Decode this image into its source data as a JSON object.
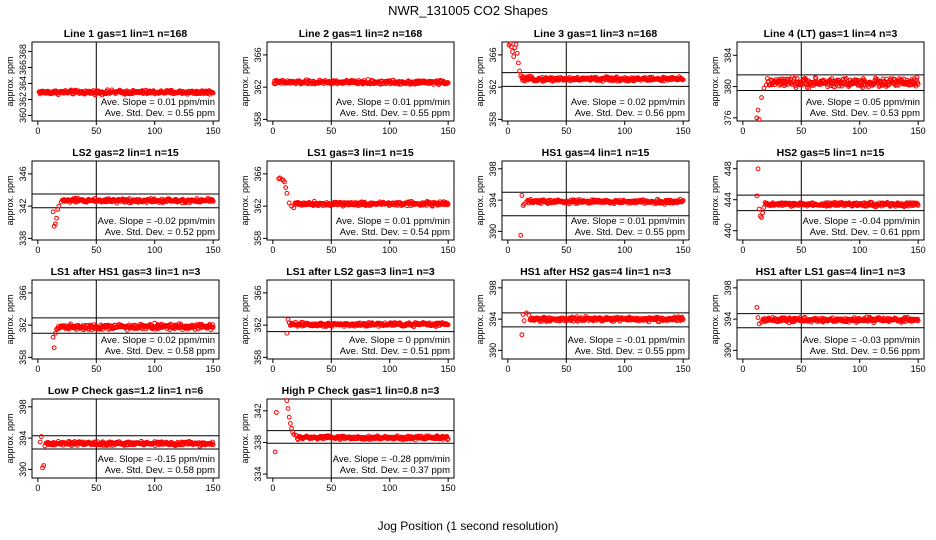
{
  "page": {
    "title": "NWR_131005  CO2 Shapes",
    "xlabel": "Jog Position (1 second resolution)"
  },
  "colors": {
    "points": "#ff0000",
    "axes": "#000000"
  },
  "chart_data": [
    {
      "type": "scatter",
      "title": "Line 1 gas=1 lin=1 n=168",
      "ylabel": "approx. ppm",
      "xticks": [
        0,
        50,
        100,
        150
      ],
      "yticks": [
        360,
        362,
        364,
        366,
        368
      ],
      "ylim": [
        359.3,
        369.2
      ],
      "xlim": [
        -5,
        155
      ],
      "hlines": [],
      "vline": 50,
      "y_mean": 362.9,
      "noise": 0.22,
      "transient": [],
      "slope_text": "Ave. Slope = 0.01  ppm/min",
      "std_text": "Ave. Std. Dev. = 0.55  ppm"
    },
    {
      "type": "scatter",
      "title": "Line 2 gas=1 lin=2 n=168",
      "ylabel": "approx. ppm",
      "xticks": [
        0,
        50,
        100,
        150
      ],
      "yticks": [
        358,
        362,
        366
      ],
      "ylim": [
        357.8,
        367.6
      ],
      "xlim": [
        -5,
        155
      ],
      "hlines": [],
      "vline": 50,
      "y_mean": 362.6,
      "noise": 0.22,
      "transient": [],
      "slope_text": "Ave. Slope = 0.01  ppm/min",
      "std_text": "Ave. Std. Dev. = 0.55  ppm"
    },
    {
      "type": "scatter",
      "title": "Line 3 gas=1 lin=3 n=168",
      "ylabel": "approx. ppm",
      "xticks": [
        0,
        50,
        100,
        150
      ],
      "yticks": [
        358,
        362,
        366
      ],
      "ylim": [
        357.8,
        367.6
      ],
      "xlim": [
        -5,
        155
      ],
      "hlines": [
        363.8,
        362.1
      ],
      "vline": 50,
      "y_mean": 363.0,
      "noise": 0.22,
      "transient": [
        [
          1,
          367.2
        ],
        [
          2,
          367.4
        ],
        [
          3,
          367.0
        ],
        [
          4,
          366.4
        ],
        [
          5,
          365.8
        ],
        [
          6,
          366.9
        ],
        [
          7,
          367.3
        ],
        [
          8,
          366.2
        ],
        [
          9,
          365.0
        ],
        [
          10,
          364.0
        ],
        [
          11,
          363.4
        ]
      ],
      "slope_text": "Ave. Slope = 0.02  ppm/min",
      "std_text": "Ave. Std. Dev. = 0.56  ppm"
    },
    {
      "type": "scatter",
      "title": "Line 4 (LT) gas=1 lin=4 n=3",
      "ylabel": "approx. ppm",
      "xticks": [
        0,
        50,
        100,
        150
      ],
      "yticks": [
        376,
        380,
        384
      ],
      "ylim": [
        375.6,
        385.7
      ],
      "xlim": [
        -5,
        155
      ],
      "hlines": [
        381.5,
        379.5
      ],
      "vline": 50,
      "y_mean": 380.5,
      "noise": 0.5,
      "transient": [
        [
          12,
          376.0
        ],
        [
          13,
          377.0
        ],
        [
          14,
          375.8
        ],
        [
          16,
          378.6
        ],
        [
          18,
          379.8
        ],
        [
          20,
          380.2
        ]
      ],
      "slope_text": "Ave. Slope = 0.05  ppm/min",
      "std_text": "Ave. Std. Dev. = 0.53  ppm"
    },
    {
      "type": "scatter",
      "title": "LS2 gas=2 lin=1 n=15",
      "ylabel": "approx. ppm",
      "xticks": [
        0,
        50,
        100,
        150
      ],
      "yticks": [
        338,
        342,
        346
      ],
      "ylim": [
        337.8,
        347.6
      ],
      "xlim": [
        -5,
        155
      ],
      "hlines": [
        343.5,
        341.8
      ],
      "vline": 50,
      "y_mean": 342.7,
      "noise": 0.22,
      "transient": [
        [
          13,
          341.3
        ],
        [
          14,
          339.5
        ],
        [
          15,
          339.8
        ],
        [
          16,
          340.5
        ],
        [
          17,
          341.6
        ],
        [
          18,
          342.0
        ],
        [
          20,
          342.5
        ]
      ],
      "slope_text": "Ave. Slope = -0.02  ppm/min",
      "std_text": "Ave. Std. Dev. = 0.52  ppm"
    },
    {
      "type": "scatter",
      "title": "LS1 gas=3 lin=1 n=15",
      "ylabel": "approx. ppm",
      "xticks": [
        0,
        50,
        100,
        150
      ],
      "yticks": [
        358,
        362,
        366
      ],
      "ylim": [
        357.8,
        367.6
      ],
      "xlim": [
        -5,
        155
      ],
      "hlines": [],
      "vline": 50,
      "y_mean": 362.3,
      "noise": 0.22,
      "transient": [
        [
          5,
          365.4
        ],
        [
          6,
          365.5
        ],
        [
          8,
          365.3
        ],
        [
          9,
          365.2
        ],
        [
          10,
          365.0
        ],
        [
          11,
          364.3
        ],
        [
          12,
          363.6
        ],
        [
          14,
          362.4
        ],
        [
          16,
          362.0
        ],
        [
          18,
          361.8
        ]
      ],
      "slope_text": "Ave. Slope = 0.01  ppm/min",
      "std_text": "Ave. Std. Dev. = 0.54  ppm"
    },
    {
      "type": "scatter",
      "title": "HS1 gas=4 lin=1 n=15",
      "ylabel": "approx. ppm",
      "xticks": [
        0,
        50,
        100,
        150
      ],
      "yticks": [
        390,
        394,
        398
      ],
      "ylim": [
        388.9,
        399.0
      ],
      "xlim": [
        -5,
        155
      ],
      "hlines": [
        395.0,
        392.0
      ],
      "vline": 50,
      "y_mean": 393.8,
      "noise": 0.22,
      "transient": [
        [
          11,
          389.5
        ],
        [
          12,
          394.6
        ],
        [
          13,
          393.3
        ],
        [
          14,
          393.5
        ],
        [
          16,
          393.8
        ]
      ],
      "slope_text": "Ave. Slope = 0.01  ppm/min",
      "std_text": "Ave. Std. Dev. = 0.55  ppm"
    },
    {
      "type": "scatter",
      "title": "HS2 gas=5 lin=1 n=15",
      "ylabel": "approx. ppm",
      "xticks": [
        0,
        50,
        100,
        150
      ],
      "yticks": [
        440,
        444,
        448
      ],
      "ylim": [
        438.8,
        449.0
      ],
      "xlim": [
        -5,
        155
      ],
      "hlines": [
        444.6,
        442.6
      ],
      "vline": 50,
      "y_mean": 443.4,
      "noise": 0.22,
      "transient": [
        [
          12,
          444.5
        ],
        [
          13,
          448.0
        ],
        [
          14,
          442.8
        ],
        [
          15,
          441.9
        ],
        [
          16,
          441.7
        ],
        [
          17,
          442.3
        ],
        [
          18,
          443.0
        ]
      ],
      "slope_text": "Ave. Slope = -0.04  ppm/min",
      "std_text": "Ave. Std. Dev. = 0.61  ppm"
    },
    {
      "type": "scatter",
      "title": "LS1 after HS1 gas=3 lin=1 n=3",
      "ylabel": "approx. ppm",
      "xticks": [
        0,
        50,
        100,
        150
      ],
      "yticks": [
        358,
        362,
        366
      ],
      "ylim": [
        357.8,
        367.6
      ],
      "xlim": [
        -5,
        155
      ],
      "hlines": [
        362.9,
        361.0
      ],
      "vline": 50,
      "y_mean": 361.8,
      "noise": 0.28,
      "transient": [
        [
          13,
          360.5
        ],
        [
          14,
          359.2
        ],
        [
          15,
          361.0
        ],
        [
          16,
          361.5
        ]
      ],
      "slope_text": "Ave. Slope = 0.02  ppm/min",
      "std_text": "Ave. Std. Dev. = 0.58  ppm"
    },
    {
      "type": "scatter",
      "title": "LS1 after LS2 gas=3 lin=1 n=3",
      "ylabel": "approx. ppm",
      "xticks": [
        0,
        50,
        100,
        150
      ],
      "yticks": [
        358,
        362,
        366
      ],
      "ylim": [
        357.8,
        367.6
      ],
      "xlim": [
        -5,
        155
      ],
      "hlines": [
        363.0,
        361.2
      ],
      "vline": 50,
      "y_mean": 362.1,
      "noise": 0.22,
      "transient": [
        [
          12,
          361.0
        ],
        [
          13,
          362.7
        ],
        [
          14,
          362.3
        ]
      ],
      "slope_text": "Ave. Slope = 0  ppm/min",
      "std_text": "Ave. Std. Dev. = 0.51  ppm"
    },
    {
      "type": "scatter",
      "title": "HS1 after HS2 gas=4 lin=1 n=3",
      "ylabel": "approx. ppm",
      "xticks": [
        0,
        50,
        100,
        150
      ],
      "yticks": [
        390,
        394,
        398
      ],
      "ylim": [
        388.9,
        399.0
      ],
      "xlim": [
        -5,
        155
      ],
      "hlines": [
        394.8,
        393.0
      ],
      "vline": 50,
      "y_mean": 394.0,
      "noise": 0.25,
      "transient": [
        [
          12,
          392.0
        ],
        [
          13,
          394.6
        ],
        [
          14,
          393.8
        ],
        [
          16,
          394.8
        ],
        [
          18,
          394.5
        ]
      ],
      "slope_text": "Ave. Slope = -0.01  ppm/min",
      "std_text": "Ave. Std. Dev. = 0.55  ppm"
    },
    {
      "type": "scatter",
      "title": "HS1 after LS1 gas=4 lin=1 n=3",
      "ylabel": "approx. ppm",
      "xticks": [
        0,
        50,
        100,
        150
      ],
      "yticks": [
        390,
        394,
        398
      ],
      "ylim": [
        388.9,
        399.0
      ],
      "xlim": [
        -5,
        155
      ],
      "hlines": [
        394.7,
        392.9
      ],
      "vline": 50,
      "y_mean": 393.9,
      "noise": 0.25,
      "transient": [
        [
          12,
          395.5
        ],
        [
          13,
          394.2
        ],
        [
          14,
          393.4
        ],
        [
          16,
          393.6
        ]
      ],
      "slope_text": "Ave. Slope = -0.03  ppm/min",
      "std_text": "Ave. Std. Dev. = 0.56  ppm"
    },
    {
      "type": "scatter",
      "title": "Low P Check gas=1.2 lin=1 n=6",
      "ylabel": "approx. ppm",
      "xticks": [
        0,
        50,
        100,
        150
      ],
      "yticks": [
        390,
        394,
        398
      ],
      "ylim": [
        388.9,
        399.0
      ],
      "xlim": [
        -5,
        155
      ],
      "hlines": [
        394.3,
        392.6
      ],
      "vline": 50,
      "y_mean": 393.3,
      "noise": 0.22,
      "transient": [
        [
          2,
          393.5
        ],
        [
          3,
          394.2
        ],
        [
          4,
          390.2
        ],
        [
          5,
          390.5
        ],
        [
          6,
          393.0
        ]
      ],
      "slope_text": "Ave. Slope = -0.15  ppm/min",
      "std_text": "Ave. Std. Dev. = 0.58  ppm"
    },
    {
      "type": "scatter",
      "title": "High P Check gas=1 lin=0.8 n=3",
      "ylabel": "approx. ppm",
      "xticks": [
        0,
        50,
        100,
        150
      ],
      "yticks": [
        334,
        338,
        342
      ],
      "ylim": [
        333.5,
        343.5
      ],
      "xlim": [
        -5,
        155
      ],
      "hlines": [
        339.5,
        337.9
      ],
      "vline": 50,
      "y_mean": 338.6,
      "noise": 0.2,
      "transient": [
        [
          2,
          336.8
        ],
        [
          3,
          341.8
        ],
        [
          12,
          343.3
        ],
        [
          13,
          342.3
        ],
        [
          14,
          341.2
        ],
        [
          15,
          340.4
        ],
        [
          16,
          339.8
        ],
        [
          17,
          339.3
        ],
        [
          18,
          339.0
        ],
        [
          20,
          338.9
        ]
      ],
      "slope_text": "Ave. Slope = -0.28  ppm/min",
      "std_text": "Ave. Std. Dev. = 0.37  ppm"
    }
  ]
}
